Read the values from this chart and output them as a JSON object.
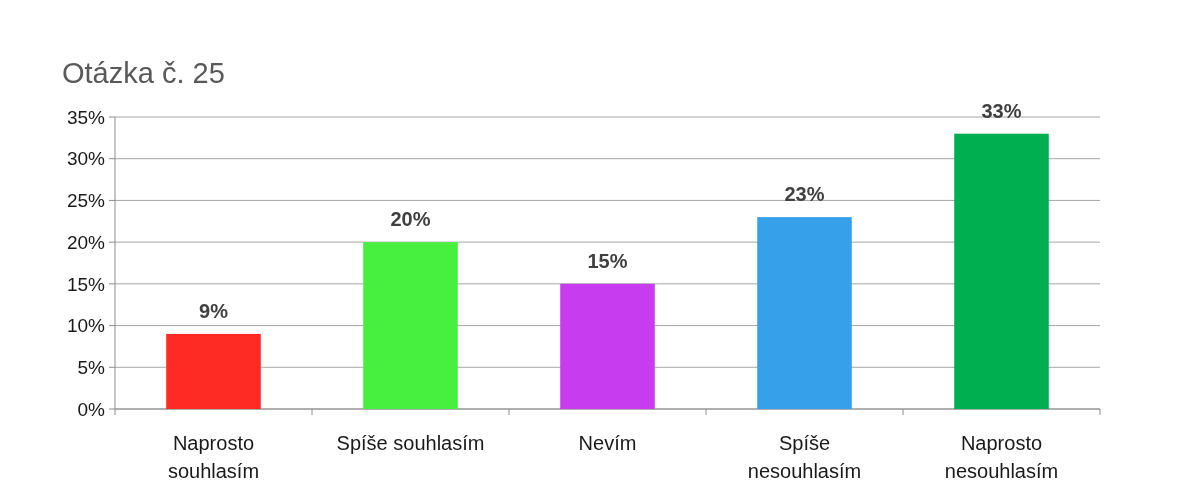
{
  "chart_data": {
    "type": "bar",
    "title": "Otázka č. 25",
    "categories": [
      "Naprosto souhlasím",
      "Spíše souhlasím",
      "Nevím",
      "Spíše nesouhlasím",
      "Naprosto nesouhlasím"
    ],
    "values": [
      9,
      20,
      15,
      23,
      33
    ],
    "colors": [
      "#fe2a24",
      "#47ef3f",
      "#c83cf0",
      "#37a0ea",
      "#00b050"
    ],
    "value_labels": [
      "9%",
      "20%",
      "15%",
      "23%",
      "33%"
    ],
    "ylim": [
      0,
      35
    ],
    "yticks": [
      {
        "value": 0,
        "label": "0%"
      },
      {
        "value": 5,
        "label": "5%"
      },
      {
        "value": 10,
        "label": "10%"
      },
      {
        "value": 15,
        "label": "15%"
      },
      {
        "value": 20,
        "label": "20%"
      },
      {
        "value": 25,
        "label": "25%"
      },
      {
        "value": 30,
        "label": "30%"
      },
      {
        "value": 35,
        "label": "35%"
      }
    ],
    "grid": "y"
  }
}
